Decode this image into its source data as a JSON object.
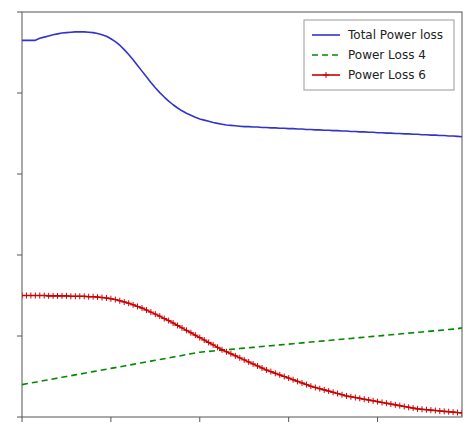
{
  "chart_data": {
    "type": "line",
    "x": [
      0,
      1,
      2,
      3,
      4,
      5,
      6,
      7,
      8,
      9,
      10,
      11,
      12,
      13,
      14,
      15,
      16,
      17,
      18,
      19,
      20,
      21,
      22,
      23,
      24,
      25,
      26,
      27,
      28,
      29,
      30,
      31,
      32,
      33,
      34,
      35,
      36,
      37,
      38,
      39,
      40,
      41,
      42,
      43,
      44,
      45,
      46,
      47,
      48,
      49,
      50,
      51,
      52,
      53,
      54,
      55,
      56,
      57,
      58,
      59,
      60,
      61,
      62,
      63,
      64,
      65,
      66,
      67,
      68,
      69,
      70,
      71,
      72,
      73,
      74,
      75,
      76,
      77,
      78,
      79,
      80,
      81,
      82,
      83,
      84,
      85,
      86,
      87,
      88,
      89,
      90,
      91,
      92,
      93,
      94,
      95,
      96,
      97,
      98,
      99
    ],
    "series": [
      {
        "name": "Total Power loss",
        "color": "#3333cc",
        "line_style": "solid",
        "values": [
          0.93,
          0.93,
          0.93,
          0.93,
          0.935,
          0.938,
          0.941,
          0.944,
          0.946,
          0.948,
          0.949,
          0.95,
          0.951,
          0.951,
          0.951,
          0.95,
          0.949,
          0.947,
          0.944,
          0.94,
          0.934,
          0.927,
          0.918,
          0.907,
          0.895,
          0.882,
          0.868,
          0.854,
          0.84,
          0.826,
          0.813,
          0.801,
          0.79,
          0.78,
          0.771,
          0.763,
          0.756,
          0.75,
          0.745,
          0.74,
          0.736,
          0.733,
          0.73,
          0.727,
          0.725,
          0.723,
          0.721,
          0.72,
          0.719,
          0.718,
          0.717,
          0.717,
          0.716,
          0.716,
          0.715,
          0.715,
          0.714,
          0.714,
          0.713,
          0.713,
          0.712,
          0.712,
          0.711,
          0.711,
          0.71,
          0.71,
          0.709,
          0.709,
          0.708,
          0.708,
          0.707,
          0.707,
          0.706,
          0.706,
          0.705,
          0.705,
          0.704,
          0.704,
          0.703,
          0.703,
          0.702,
          0.702,
          0.701,
          0.701,
          0.7,
          0.7,
          0.699,
          0.699,
          0.698,
          0.698,
          0.697,
          0.697,
          0.696,
          0.696,
          0.695,
          0.695,
          0.694,
          0.694,
          0.693,
          0.692
        ]
      },
      {
        "name": "Power Loss 4",
        "color": "#008800",
        "line_style": "dashed",
        "values": [
          0.08,
          0.082,
          0.084,
          0.086,
          0.088,
          0.09,
          0.092,
          0.094,
          0.096,
          0.098,
          0.1,
          0.102,
          0.104,
          0.106,
          0.108,
          0.11,
          0.112,
          0.114,
          0.116,
          0.118,
          0.12,
          0.122,
          0.124,
          0.126,
          0.128,
          0.13,
          0.132,
          0.134,
          0.136,
          0.138,
          0.14,
          0.142,
          0.144,
          0.146,
          0.148,
          0.15,
          0.152,
          0.154,
          0.156,
          0.158,
          0.16,
          0.161,
          0.162,
          0.163,
          0.164,
          0.165,
          0.166,
          0.167,
          0.168,
          0.169,
          0.17,
          0.171,
          0.172,
          0.173,
          0.174,
          0.175,
          0.176,
          0.177,
          0.178,
          0.179,
          0.18,
          0.181,
          0.182,
          0.183,
          0.184,
          0.185,
          0.186,
          0.187,
          0.188,
          0.189,
          0.19,
          0.191,
          0.192,
          0.193,
          0.194,
          0.195,
          0.196,
          0.197,
          0.198,
          0.199,
          0.2,
          0.201,
          0.202,
          0.203,
          0.204,
          0.205,
          0.206,
          0.207,
          0.208,
          0.209,
          0.21,
          0.211,
          0.212,
          0.213,
          0.214,
          0.215,
          0.216,
          0.217,
          0.218,
          0.22
        ]
      },
      {
        "name": "Power Loss 6",
        "color": "#cc0000",
        "line_style": "solid",
        "marker": "plus",
        "values": [
          0.3,
          0.3,
          0.3,
          0.3,
          0.3,
          0.3,
          0.299,
          0.299,
          0.299,
          0.299,
          0.299,
          0.298,
          0.298,
          0.298,
          0.298,
          0.297,
          0.297,
          0.296,
          0.295,
          0.294,
          0.292,
          0.29,
          0.287,
          0.284,
          0.281,
          0.277,
          0.273,
          0.269,
          0.264,
          0.259,
          0.254,
          0.249,
          0.243,
          0.238,
          0.232,
          0.226,
          0.22,
          0.214,
          0.208,
          0.202,
          0.196,
          0.19,
          0.184,
          0.178,
          0.172,
          0.166,
          0.161,
          0.156,
          0.151,
          0.146,
          0.141,
          0.136,
          0.131,
          0.126,
          0.121,
          0.116,
          0.112,
          0.108,
          0.104,
          0.1,
          0.096,
          0.092,
          0.088,
          0.084,
          0.08,
          0.076,
          0.073,
          0.07,
          0.067,
          0.064,
          0.061,
          0.058,
          0.055,
          0.052,
          0.05,
          0.048,
          0.046,
          0.044,
          0.042,
          0.04,
          0.038,
          0.036,
          0.034,
          0.032,
          0.03,
          0.028,
          0.026,
          0.024,
          0.022,
          0.02,
          0.019,
          0.018,
          0.017,
          0.016,
          0.015,
          0.014,
          0.013,
          0.012,
          0.011,
          0.01
        ]
      }
    ],
    "xlim": [
      0,
      99
    ],
    "ylim": [
      0.0,
      1.0
    ],
    "xticks": [
      0,
      20,
      40,
      60,
      80
    ],
    "yticks": [
      0.0,
      0.2,
      0.4,
      0.6,
      0.8,
      1.0
    ],
    "tick_labels": false,
    "grid": false,
    "legend": "upper right"
  }
}
